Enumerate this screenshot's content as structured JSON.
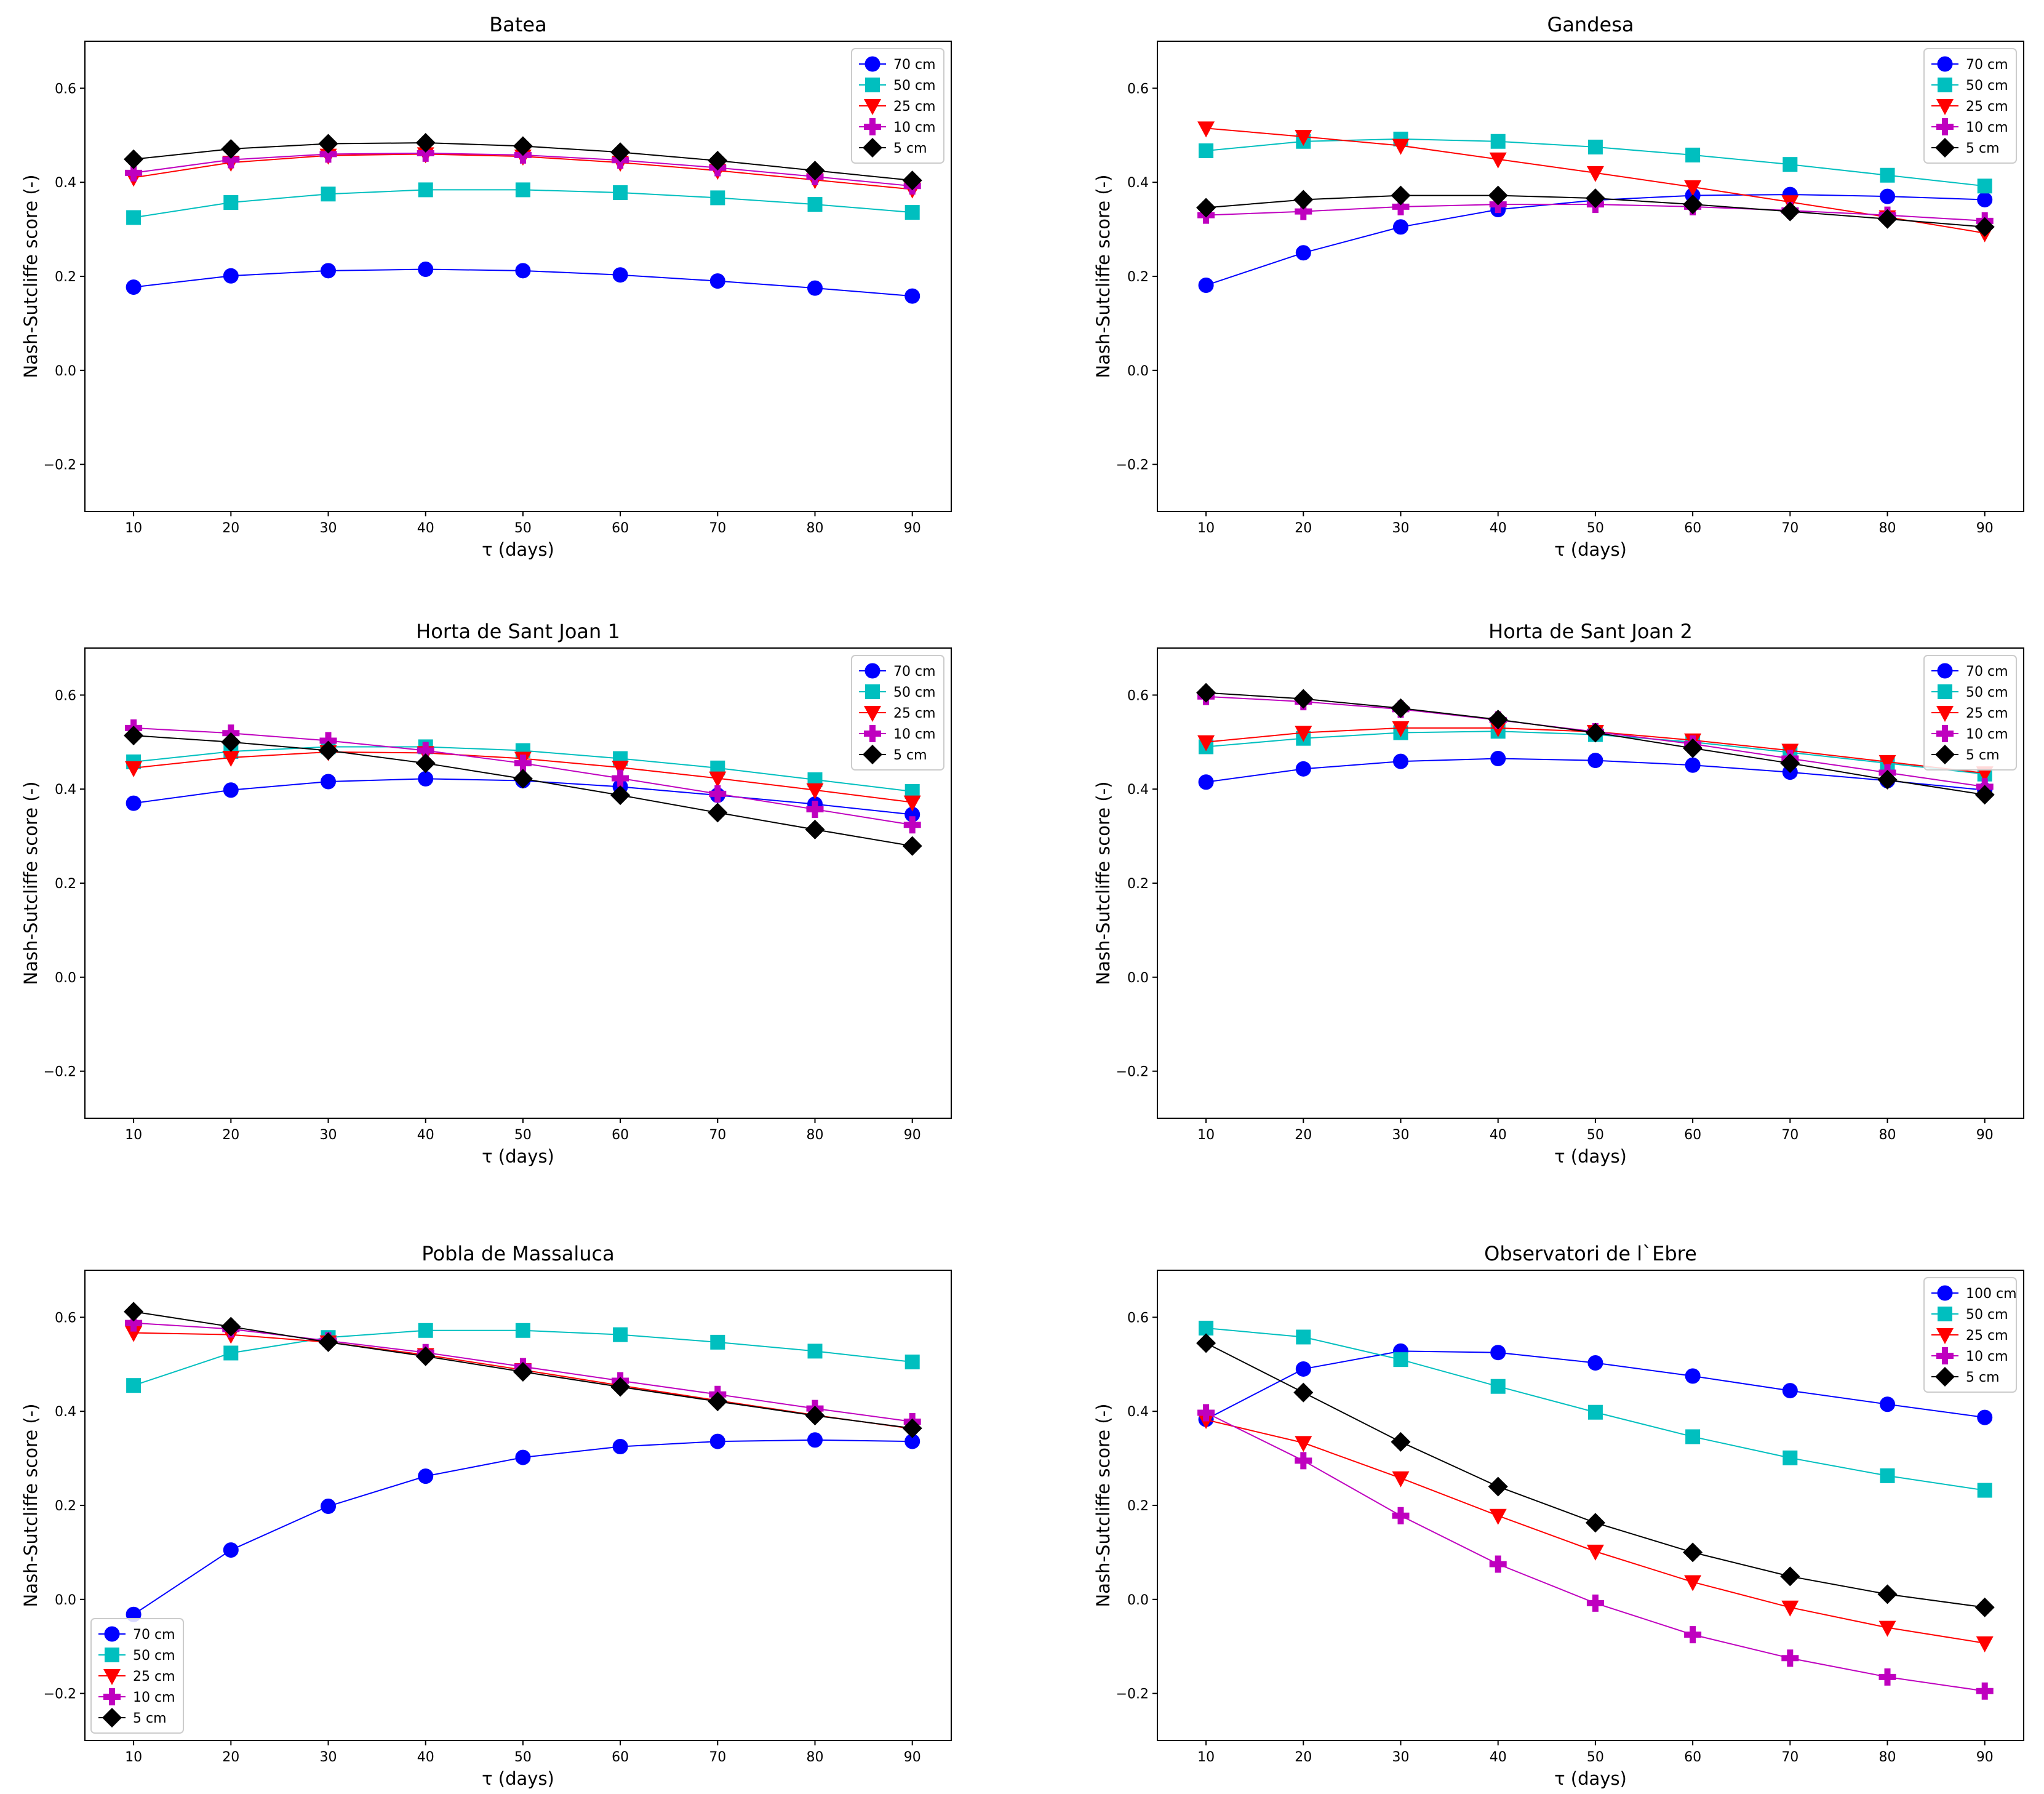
{
  "figure": {
    "description_title": "Nash-Sutcliffe score versus tau for soil-moisture depths at six stations"
  },
  "colors": {
    "70cm": "#0000ff",
    "100cm": "#0000ff",
    "50cm": "#00bfbf",
    "25cm": "#ff0000",
    "10cm": "#bf00bf",
    "5cm": "#000000"
  },
  "chart_data": [
    {
      "type": "line",
      "title": "Batea",
      "xlabel": "τ (days)",
      "ylabel": "Nash-Sutcliffe score (-)",
      "x": [
        10,
        20,
        30,
        40,
        50,
        60,
        70,
        80,
        90
      ],
      "xticks": [
        "10",
        "20",
        "30",
        "40",
        "50",
        "60",
        "70",
        "80",
        "90"
      ],
      "yticks": [
        "−0.2",
        "0.0",
        "0.2",
        "0.4",
        "0.6"
      ],
      "ytick_values": [
        -0.2,
        0.0,
        0.2,
        0.4,
        0.6
      ],
      "ylim": [
        -0.3,
        0.7
      ],
      "xlim": [
        5,
        94
      ],
      "legend_loc": "upper right",
      "series": [
        {
          "name": "70 cm",
          "color": "#0000ff",
          "marker": "circle",
          "values": [
            0.177,
            0.201,
            0.212,
            0.215,
            0.212,
            0.203,
            0.19,
            0.175,
            0.158
          ]
        },
        {
          "name": "50 cm",
          "color": "#00bfbf",
          "marker": "square",
          "values": [
            0.325,
            0.357,
            0.375,
            0.384,
            0.384,
            0.378,
            0.367,
            0.353,
            0.336
          ]
        },
        {
          "name": "25 cm",
          "color": "#ff0000",
          "marker": "triangle-down",
          "values": [
            0.41,
            0.442,
            0.457,
            0.46,
            0.455,
            0.442,
            0.425,
            0.405,
            0.385
          ]
        },
        {
          "name": "10 cm",
          "color": "#bf00bf",
          "marker": "plus",
          "values": [
            0.42,
            0.448,
            0.46,
            0.462,
            0.458,
            0.447,
            0.431,
            0.412,
            0.392
          ]
        },
        {
          "name": "5 cm",
          "color": "#000000",
          "marker": "diamond",
          "values": [
            0.449,
            0.471,
            0.482,
            0.484,
            0.477,
            0.464,
            0.446,
            0.425,
            0.404
          ]
        }
      ]
    },
    {
      "type": "line",
      "title": "Gandesa",
      "xlabel": "τ (days)",
      "ylabel": "Nash-Sutcliffe score (-)",
      "x": [
        10,
        20,
        30,
        40,
        50,
        60,
        70,
        80,
        90
      ],
      "xticks": [
        "10",
        "20",
        "30",
        "40",
        "50",
        "60",
        "70",
        "80",
        "90"
      ],
      "yticks": [
        "−0.2",
        "0.0",
        "0.2",
        "0.4",
        "0.6"
      ],
      "ytick_values": [
        -0.2,
        0.0,
        0.2,
        0.4,
        0.6
      ],
      "ylim": [
        -0.3,
        0.7
      ],
      "xlim": [
        5,
        94
      ],
      "legend_loc": "upper right",
      "series": [
        {
          "name": "70 cm",
          "color": "#0000ff",
          "marker": "circle",
          "values": [
            0.181,
            0.25,
            0.305,
            0.342,
            0.362,
            0.372,
            0.374,
            0.37,
            0.363
          ]
        },
        {
          "name": "50 cm",
          "color": "#00bfbf",
          "marker": "square",
          "values": [
            0.467,
            0.487,
            0.492,
            0.487,
            0.475,
            0.458,
            0.438,
            0.415,
            0.392
          ]
        },
        {
          "name": "25 cm",
          "color": "#ff0000",
          "marker": "triangle-down",
          "values": [
            0.515,
            0.497,
            0.478,
            0.449,
            0.42,
            0.39,
            0.358,
            0.326,
            0.292
          ]
        },
        {
          "name": "10 cm",
          "color": "#bf00bf",
          "marker": "plus",
          "values": [
            0.33,
            0.338,
            0.348,
            0.353,
            0.353,
            0.348,
            0.34,
            0.33,
            0.318
          ]
        },
        {
          "name": "5 cm",
          "color": "#000000",
          "marker": "diamond",
          "values": [
            0.346,
            0.363,
            0.372,
            0.372,
            0.366,
            0.353,
            0.338,
            0.322,
            0.305
          ]
        }
      ]
    },
    {
      "type": "line",
      "title": "Horta de Sant Joan 1",
      "xlabel": "τ (days)",
      "ylabel": "Nash-Sutcliffe score (-)",
      "x": [
        10,
        20,
        30,
        40,
        50,
        60,
        70,
        80,
        90
      ],
      "xticks": [
        "10",
        "20",
        "30",
        "40",
        "50",
        "60",
        "70",
        "80",
        "90"
      ],
      "yticks": [
        "−0.2",
        "0.0",
        "0.2",
        "0.4",
        "0.6"
      ],
      "ytick_values": [
        -0.2,
        0.0,
        0.2,
        0.4,
        0.6
      ],
      "ylim": [
        -0.3,
        0.7
      ],
      "xlim": [
        5,
        94
      ],
      "legend_loc": "upper right",
      "series": [
        {
          "name": "70 cm",
          "color": "#0000ff",
          "marker": "circle",
          "values": [
            0.37,
            0.398,
            0.416,
            0.422,
            0.418,
            0.405,
            0.387,
            0.368,
            0.346
          ]
        },
        {
          "name": "50 cm",
          "color": "#00bfbf",
          "marker": "square",
          "values": [
            0.458,
            0.48,
            0.49,
            0.49,
            0.482,
            0.465,
            0.445,
            0.42,
            0.395
          ]
        },
        {
          "name": "25 cm",
          "color": "#ff0000",
          "marker": "triangle-down",
          "values": [
            0.445,
            0.467,
            0.479,
            0.477,
            0.465,
            0.446,
            0.423,
            0.398,
            0.372
          ]
        },
        {
          "name": "10 cm",
          "color": "#bf00bf",
          "marker": "plus",
          "values": [
            0.53,
            0.519,
            0.503,
            0.482,
            0.455,
            0.423,
            0.39,
            0.357,
            0.324
          ]
        },
        {
          "name": "5 cm",
          "color": "#000000",
          "marker": "diamond",
          "values": [
            0.514,
            0.5,
            0.482,
            0.455,
            0.422,
            0.387,
            0.35,
            0.314,
            0.279
          ]
        }
      ]
    },
    {
      "type": "line",
      "title": "Horta de Sant Joan 2",
      "xlabel": "τ (days)",
      "ylabel": "Nash-Sutcliffe score (-)",
      "x": [
        10,
        20,
        30,
        40,
        50,
        60,
        70,
        80,
        90
      ],
      "xticks": [
        "10",
        "20",
        "30",
        "40",
        "50",
        "60",
        "70",
        "80",
        "90"
      ],
      "yticks": [
        "−0.2",
        "0.0",
        "0.2",
        "0.4",
        "0.6"
      ],
      "ytick_values": [
        -0.2,
        0.0,
        0.2,
        0.4,
        0.6
      ],
      "ylim": [
        -0.3,
        0.7
      ],
      "xlim": [
        5,
        94
      ],
      "legend_loc": "upper right",
      "series": [
        {
          "name": "70 cm",
          "color": "#0000ff",
          "marker": "circle",
          "values": [
            0.415,
            0.443,
            0.459,
            0.465,
            0.461,
            0.451,
            0.436,
            0.418,
            0.398
          ]
        },
        {
          "name": "50 cm",
          "color": "#00bfbf",
          "marker": "square",
          "values": [
            0.49,
            0.508,
            0.52,
            0.523,
            0.516,
            0.5,
            0.478,
            0.455,
            0.432
          ]
        },
        {
          "name": "25 cm",
          "color": "#ff0000",
          "marker": "triangle-down",
          "values": [
            0.5,
            0.52,
            0.53,
            0.53,
            0.522,
            0.504,
            0.482,
            0.458,
            0.434
          ]
        },
        {
          "name": "10 cm",
          "color": "#bf00bf",
          "marker": "plus",
          "values": [
            0.597,
            0.586,
            0.57,
            0.547,
            0.522,
            0.496,
            0.465,
            0.435,
            0.405
          ]
        },
        {
          "name": "5 cm",
          "color": "#000000",
          "marker": "diamond",
          "values": [
            0.605,
            0.592,
            0.572,
            0.548,
            0.52,
            0.487,
            0.455,
            0.42,
            0.388
          ]
        }
      ]
    },
    {
      "type": "line",
      "title": "Pobla de Massaluca",
      "xlabel": "τ (days)",
      "ylabel": "Nash-Sutcliffe score (-)",
      "x": [
        10,
        20,
        30,
        40,
        50,
        60,
        70,
        80,
        90
      ],
      "xticks": [
        "10",
        "20",
        "30",
        "40",
        "50",
        "60",
        "70",
        "80",
        "90"
      ],
      "yticks": [
        "−0.2",
        "0.0",
        "0.2",
        "0.4",
        "0.6"
      ],
      "ytick_values": [
        -0.2,
        0.0,
        0.2,
        0.4,
        0.6
      ],
      "ylim": [
        -0.3,
        0.7
      ],
      "xlim": [
        5,
        94
      ],
      "legend_loc": "lower left",
      "series": [
        {
          "name": "70 cm",
          "color": "#0000ff",
          "marker": "circle",
          "values": [
            -0.032,
            0.105,
            0.198,
            0.262,
            0.302,
            0.325,
            0.336,
            0.339,
            0.336
          ]
        },
        {
          "name": "50 cm",
          "color": "#00bfbf",
          "marker": "square",
          "values": [
            0.455,
            0.524,
            0.557,
            0.572,
            0.572,
            0.563,
            0.547,
            0.528,
            0.505
          ]
        },
        {
          "name": "25 cm",
          "color": "#ff0000",
          "marker": "triangle-down",
          "values": [
            0.567,
            0.563,
            0.547,
            0.52,
            0.488,
            0.455,
            0.423,
            0.392,
            0.363
          ]
        },
        {
          "name": "10 cm",
          "color": "#bf00bf",
          "marker": "plus",
          "values": [
            0.588,
            0.575,
            0.55,
            0.525,
            0.495,
            0.465,
            0.436,
            0.406,
            0.378
          ]
        },
        {
          "name": "5 cm",
          "color": "#000000",
          "marker": "diamond",
          "values": [
            0.612,
            0.58,
            0.547,
            0.517,
            0.484,
            0.452,
            0.421,
            0.391,
            0.364
          ]
        }
      ]
    },
    {
      "type": "line",
      "title": "Observatori de l`Ebre",
      "xlabel": "τ (days)",
      "ylabel": "Nash-Sutcliffe score (-)",
      "x": [
        10,
        20,
        30,
        40,
        50,
        60,
        70,
        80,
        90
      ],
      "xticks": [
        "10",
        "20",
        "30",
        "40",
        "50",
        "60",
        "70",
        "80",
        "90"
      ],
      "yticks": [
        "−0.2",
        "0.0",
        "0.2",
        "0.4",
        "0.6"
      ],
      "ytick_values": [
        -0.2,
        0.0,
        0.2,
        0.4,
        0.6
      ],
      "ylim": [
        -0.3,
        0.7
      ],
      "xlim": [
        5,
        94
      ],
      "legend_loc": "upper right",
      "series": [
        {
          "name": "100 cm",
          "color": "#0000ff",
          "marker": "circle",
          "values": [
            0.383,
            0.49,
            0.528,
            0.525,
            0.503,
            0.475,
            0.444,
            0.415,
            0.387
          ]
        },
        {
          "name": "50 cm",
          "color": "#00bfbf",
          "marker": "square",
          "values": [
            0.577,
            0.558,
            0.51,
            0.453,
            0.398,
            0.346,
            0.301,
            0.263,
            0.232
          ]
        },
        {
          "name": "25 cm",
          "color": "#ff0000",
          "marker": "triangle-down",
          "values": [
            0.382,
            0.333,
            0.258,
            0.178,
            0.102,
            0.037,
            -0.017,
            -0.06,
            -0.093
          ]
        },
        {
          "name": "10 cm",
          "color": "#bf00bf",
          "marker": "plus",
          "values": [
            0.397,
            0.295,
            0.178,
            0.075,
            -0.008,
            -0.075,
            -0.125,
            -0.165,
            -0.195
          ]
        },
        {
          "name": "5 cm",
          "color": "#000000",
          "marker": "diamond",
          "values": [
            0.545,
            0.44,
            0.335,
            0.24,
            0.163,
            0.1,
            0.049,
            0.011,
            -0.017
          ]
        }
      ]
    }
  ]
}
